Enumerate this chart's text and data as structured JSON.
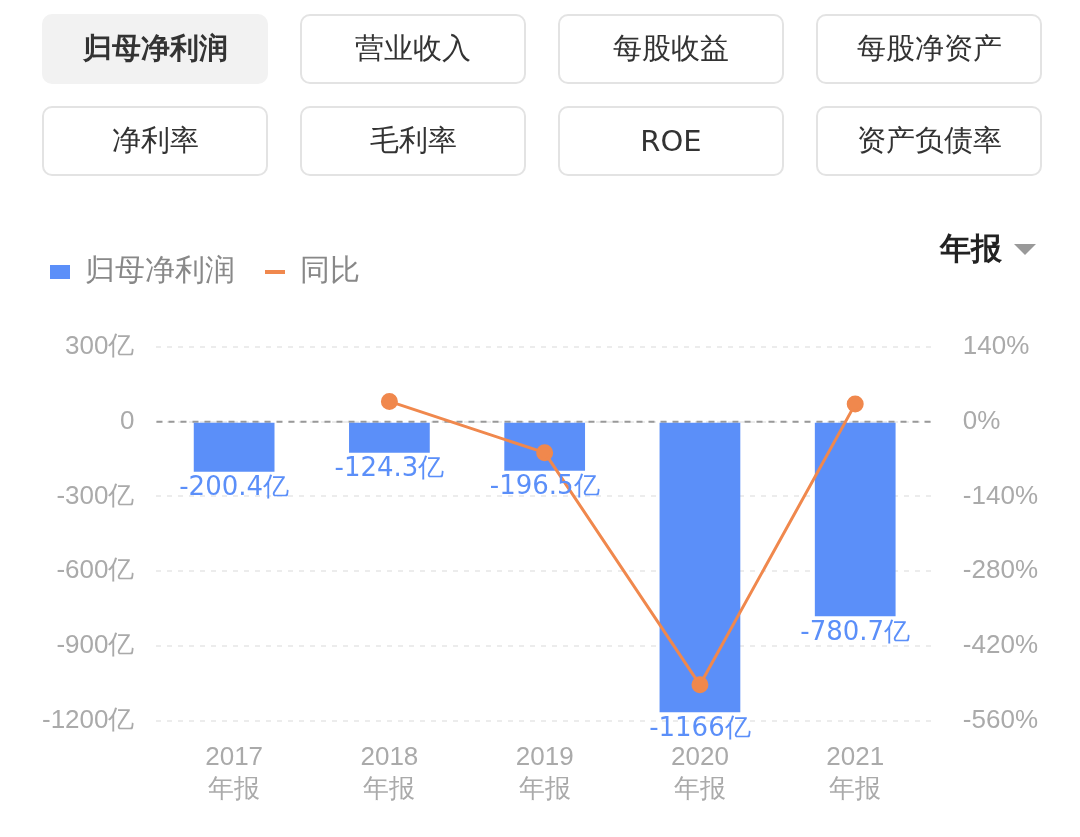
{
  "chart_data": {
    "type": "bar",
    "annotations": [
      "归母净利润",
      "营业收入",
      "每股收益",
      "每股净资产",
      "净利率",
      "毛利率",
      "ROE",
      "资产负债率",
      "年报"
    ],
    "categories": [
      "2017\n年报",
      "2018\n年报",
      "2019\n年报",
      "2020\n年报",
      "2021\n年报"
    ],
    "series": [
      {
        "name": "归母净利润",
        "color": "#5b8ff9",
        "values": [
          -200.4,
          -124.3,
          -196.5,
          -1166,
          -780.7
        ],
        "value_labels": [
          "-200.4亿",
          "-124.3亿",
          "-196.5亿",
          "-1166亿",
          "-780.7亿"
        ]
      },
      {
        "name": "同比",
        "type": "line",
        "axis": "y2",
        "color": "#f0884d",
        "values": [
          null,
          38,
          -58,
          -493,
          33
        ]
      }
    ],
    "ylim": [
      -1200,
      300
    ],
    "yticks": [
      {
        "value": 300,
        "label": "300亿"
      },
      0,
      {
        "value": -300,
        "label": "-300亿"
      },
      {
        "value": -600,
        "label": "-600亿"
      },
      {
        "value": -900,
        "label": "-900亿"
      },
      {
        "value": -1200,
        "label": "-1200亿"
      }
    ],
    "y2lim": [
      -560,
      140
    ],
    "y2ticks": [
      {
        "value": 140,
        "label": "140%"
      },
      {
        "value": 0,
        "label": "0%"
      },
      {
        "value": -140,
        "label": "-140%"
      },
      {
        "value": -280,
        "label": "-280%"
      },
      {
        "value": -420,
        "label": "-420%"
      },
      {
        "value": -560,
        "label": "-560%"
      }
    ],
    "ref_lines": [
      {
        "axis": "y",
        "value": 0,
        "color": "#999999",
        "line_style": "dashed"
      }
    ],
    "grid": "y",
    "legend": "top left",
    "marker": "circle"
  }
}
